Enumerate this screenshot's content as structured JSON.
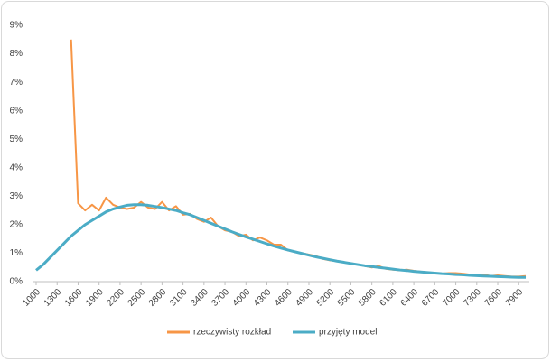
{
  "chart_data": {
    "type": "line",
    "x": [
      1000,
      1100,
      1200,
      1300,
      1400,
      1500,
      1600,
      1700,
      1800,
      1900,
      2000,
      2100,
      2200,
      2300,
      2400,
      2500,
      2600,
      2700,
      2800,
      2900,
      3000,
      3100,
      3200,
      3300,
      3400,
      3500,
      3600,
      3700,
      3800,
      3900,
      4000,
      4100,
      4200,
      4300,
      4400,
      4500,
      4600,
      4700,
      4800,
      4900,
      5000,
      5100,
      5200,
      5300,
      5400,
      5500,
      5600,
      5700,
      5800,
      5900,
      6000,
      6100,
      6200,
      6300,
      6400,
      6500,
      6600,
      6700,
      6800,
      6900,
      7000,
      7100,
      7200,
      7300,
      7400,
      7500,
      7600,
      7700,
      7800,
      7900,
      8000
    ],
    "xlim": [
      1000,
      8000
    ],
    "xticks": [
      1000,
      1300,
      1600,
      1900,
      2200,
      2500,
      2800,
      3100,
      3400,
      3700,
      4000,
      4300,
      4600,
      4900,
      5200,
      5500,
      5800,
      6100,
      6400,
      6700,
      7000,
      7300,
      7600,
      7900
    ],
    "ylim": [
      0,
      9
    ],
    "yticks": [
      {
        "value": 0,
        "label": "0%"
      },
      {
        "value": 1,
        "label": "1%"
      },
      {
        "value": 2,
        "label": "2%"
      },
      {
        "value": 3,
        "label": "3%"
      },
      {
        "value": 4,
        "label": "4%"
      },
      {
        "value": 5,
        "label": "5%"
      },
      {
        "value": 6,
        "label": "6%"
      },
      {
        "value": 7,
        "label": "7%"
      },
      {
        "value": 8,
        "label": "8%"
      },
      {
        "value": 9,
        "label": "9%"
      }
    ],
    "grid": false,
    "legend": "bottom",
    "series": [
      {
        "name": "rzeczywisty rozkład",
        "color": "#f79646",
        "values": [
          null,
          null,
          null,
          null,
          null,
          8.5,
          2.75,
          2.5,
          2.7,
          2.5,
          2.95,
          2.7,
          2.6,
          2.55,
          2.6,
          2.8,
          2.6,
          2.55,
          2.8,
          2.5,
          2.65,
          2.35,
          2.38,
          2.2,
          2.1,
          2.25,
          1.95,
          1.8,
          1.75,
          1.6,
          1.65,
          1.45,
          1.55,
          1.45,
          1.3,
          1.3,
          1.1,
          1.05,
          1.0,
          0.95,
          0.9,
          0.8,
          0.75,
          0.72,
          0.68,
          0.65,
          0.6,
          0.55,
          0.5,
          0.55,
          0.45,
          0.42,
          0.4,
          0.42,
          0.38,
          0.35,
          0.33,
          0.3,
          0.28,
          0.3,
          0.3,
          0.28,
          0.25,
          0.25,
          0.25,
          0.2,
          0.22,
          0.2,
          0.18,
          0.18,
          0.2
        ]
      },
      {
        "name": "przyjęty model",
        "color": "#4bacc6",
        "values": [
          0.4,
          0.6,
          0.85,
          1.1,
          1.35,
          1.6,
          1.8,
          2.0,
          2.15,
          2.3,
          2.45,
          2.55,
          2.62,
          2.68,
          2.7,
          2.7,
          2.68,
          2.64,
          2.6,
          2.55,
          2.5,
          2.42,
          2.35,
          2.25,
          2.15,
          2.05,
          1.95,
          1.85,
          1.75,
          1.66,
          1.57,
          1.49,
          1.41,
          1.33,
          1.25,
          1.18,
          1.11,
          1.05,
          0.99,
          0.93,
          0.87,
          0.82,
          0.77,
          0.72,
          0.68,
          0.64,
          0.6,
          0.56,
          0.53,
          0.5,
          0.47,
          0.44,
          0.41,
          0.39,
          0.36,
          0.34,
          0.32,
          0.3,
          0.28,
          0.27,
          0.25,
          0.24,
          0.22,
          0.21,
          0.2,
          0.19,
          0.18,
          0.17,
          0.16,
          0.15,
          0.15
        ]
      }
    ]
  }
}
